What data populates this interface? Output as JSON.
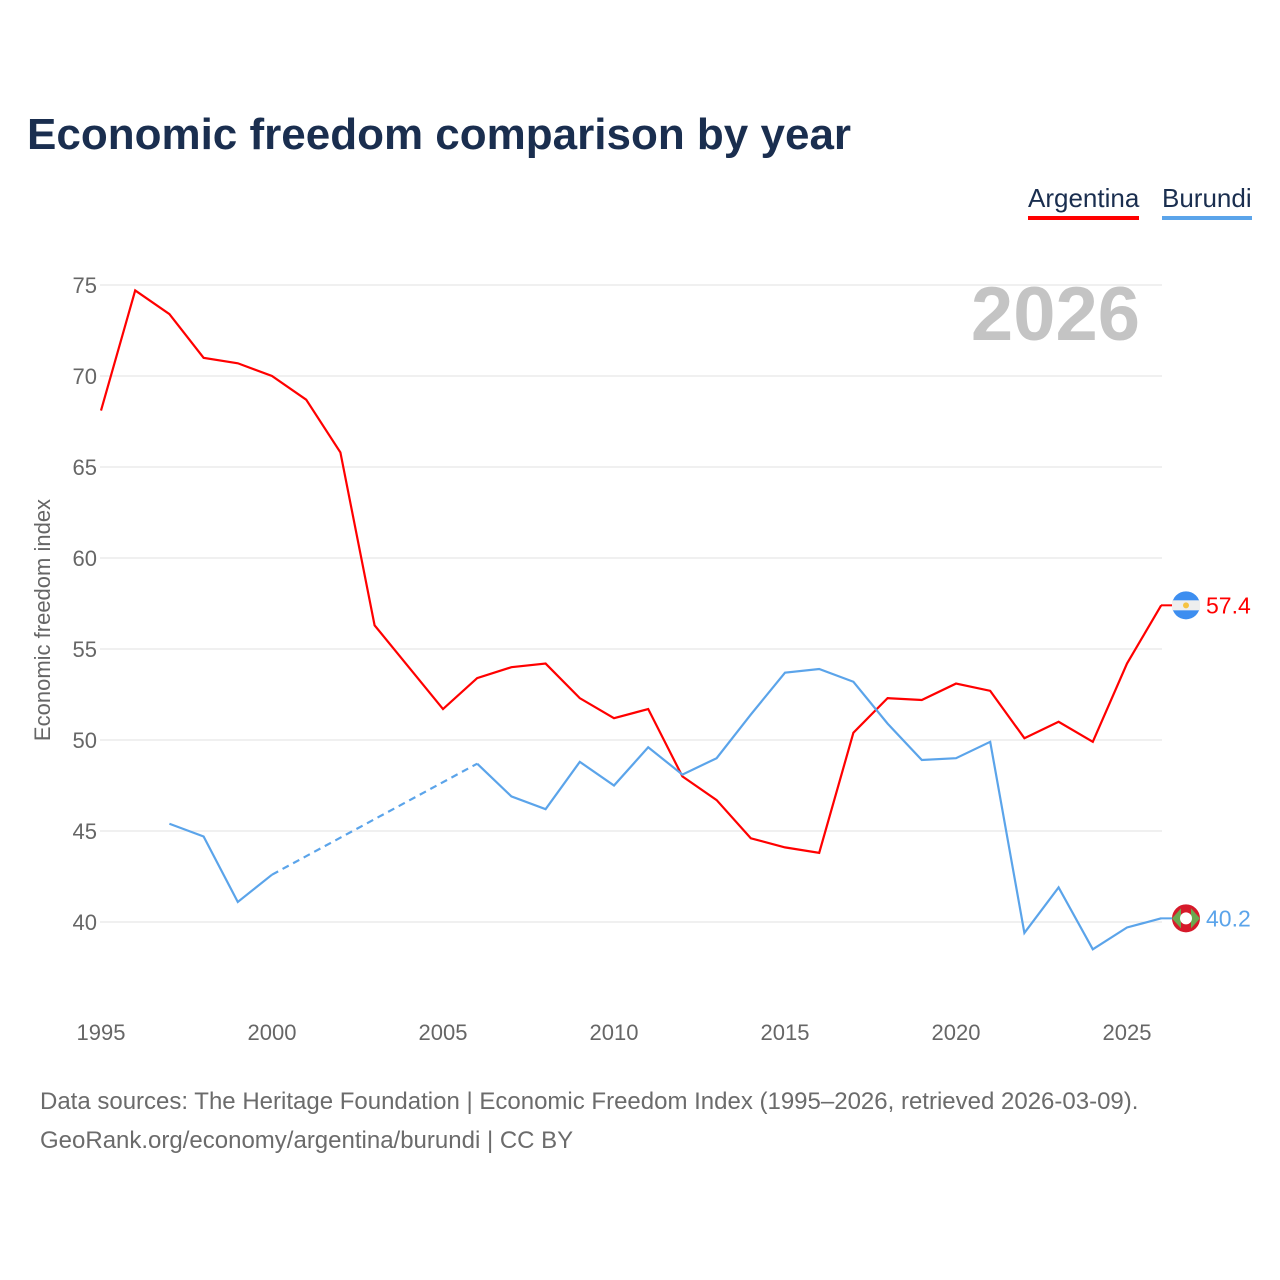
{
  "title": "Economic freedom comparison by year",
  "sources": {
    "line1": "Data sources: The Heritage Foundation | Economic Freedom Index (1995–2026, retrieved 2026-03-09).",
    "line2": "GeoRank.org/economy/argentina/burundi | CC BY"
  },
  "chart_data": {
    "type": "line",
    "title": "Economic freedom comparison by year",
    "xlabel": "",
    "ylabel": "Economic freedom index",
    "year_watermark": "2026",
    "xlim": [
      1995,
      2026
    ],
    "ylim": [
      35,
      77
    ],
    "xticks": [
      1995,
      2000,
      2005,
      2010,
      2015,
      2020,
      2025
    ],
    "yticks": [
      40,
      45,
      50,
      55,
      60,
      65,
      70,
      75
    ],
    "grid": true,
    "legend_position": "top-right",
    "x": [
      1995,
      1996,
      1997,
      1998,
      1999,
      2000,
      2001,
      2002,
      2003,
      2004,
      2005,
      2006,
      2007,
      2008,
      2009,
      2010,
      2011,
      2012,
      2013,
      2014,
      2015,
      2016,
      2017,
      2018,
      2019,
      2020,
      2021,
      2022,
      2023,
      2024,
      2025,
      2026
    ],
    "series": [
      {
        "name": "Argentina",
        "color": "#ff0000",
        "end_label": "57.4",
        "values": [
          68.1,
          74.7,
          73.4,
          71.0,
          70.7,
          70.0,
          68.7,
          65.8,
          56.3,
          54.0,
          51.7,
          53.4,
          54.0,
          54.2,
          52.3,
          51.2,
          51.7,
          48.0,
          46.7,
          44.6,
          44.1,
          43.8,
          50.4,
          52.3,
          52.2,
          53.1,
          52.7,
          50.1,
          51.0,
          49.9,
          54.2,
          57.4
        ]
      },
      {
        "name": "Burundi",
        "color": "#5ba4ea",
        "end_label": "40.2",
        "values": [
          null,
          null,
          45.4,
          44.7,
          41.1,
          42.6,
          null,
          null,
          null,
          null,
          null,
          48.7,
          46.9,
          46.2,
          48.8,
          47.5,
          49.6,
          48.1,
          49.0,
          51.4,
          53.7,
          53.9,
          53.2,
          50.9,
          48.9,
          49.0,
          49.9,
          39.4,
          41.9,
          38.5,
          39.7,
          40.2
        ]
      }
    ]
  }
}
